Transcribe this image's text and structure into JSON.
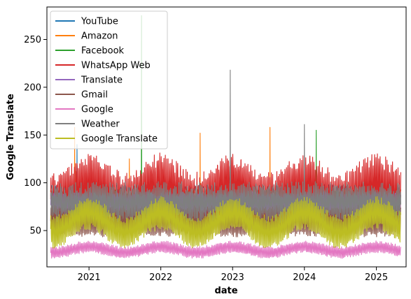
{
  "chart_data": {
    "type": "line",
    "xlabel": "date",
    "ylabel": "Google Translate",
    "x_range": [
      "2020-06-01",
      "2025-06-01"
    ],
    "ylim": [
      12,
      284
    ],
    "x_ticks": [
      {
        "date": "2021-01-01",
        "label": "2021"
      },
      {
        "date": "2022-01-01",
        "label": "2022"
      },
      {
        "date": "2023-01-01",
        "label": "2023"
      },
      {
        "date": "2024-01-01",
        "label": "2024"
      },
      {
        "date": "2025-01-01",
        "label": "2025"
      }
    ],
    "y_ticks": [
      50,
      100,
      150,
      200,
      250
    ],
    "grid": false,
    "legend": "top-left",
    "series": [
      {
        "name": "YouTube",
        "color": "#1f77b4",
        "notable": [
          {
            "x": "2020-11-01",
            "y": 140
          }
        ]
      },
      {
        "name": "Amazon",
        "color": "#ff7f0e",
        "notable": [
          {
            "x": "2020-10-20",
            "y": 158
          },
          {
            "x": "2021-07-25",
            "y": 125
          },
          {
            "x": "2022-07-20",
            "y": 152
          },
          {
            "x": "2023-07-10",
            "y": 158
          }
        ]
      },
      {
        "name": "Facebook",
        "color": "#2ca02c",
        "notable": [
          {
            "x": "2021-09-25",
            "y": 275
          },
          {
            "x": "2024-03-01",
            "y": 155
          }
        ]
      },
      {
        "name": "WhatsApp Web",
        "color": "#d62728",
        "notable": []
      },
      {
        "name": "Translate",
        "color": "#9467bd",
        "notable": []
      },
      {
        "name": "Gmail",
        "color": "#8c564b",
        "notable": []
      },
      {
        "name": "Google",
        "color": "#e377c2",
        "notable": []
      },
      {
        "name": "Weather",
        "color": "#7f7f7f",
        "notable": [
          {
            "x": "2022-12-20",
            "y": 218
          },
          {
            "x": "2024-01-01",
            "y": 161
          }
        ]
      },
      {
        "name": "Google Translate",
        "color": "#bcbd22",
        "notable": []
      }
    ]
  }
}
